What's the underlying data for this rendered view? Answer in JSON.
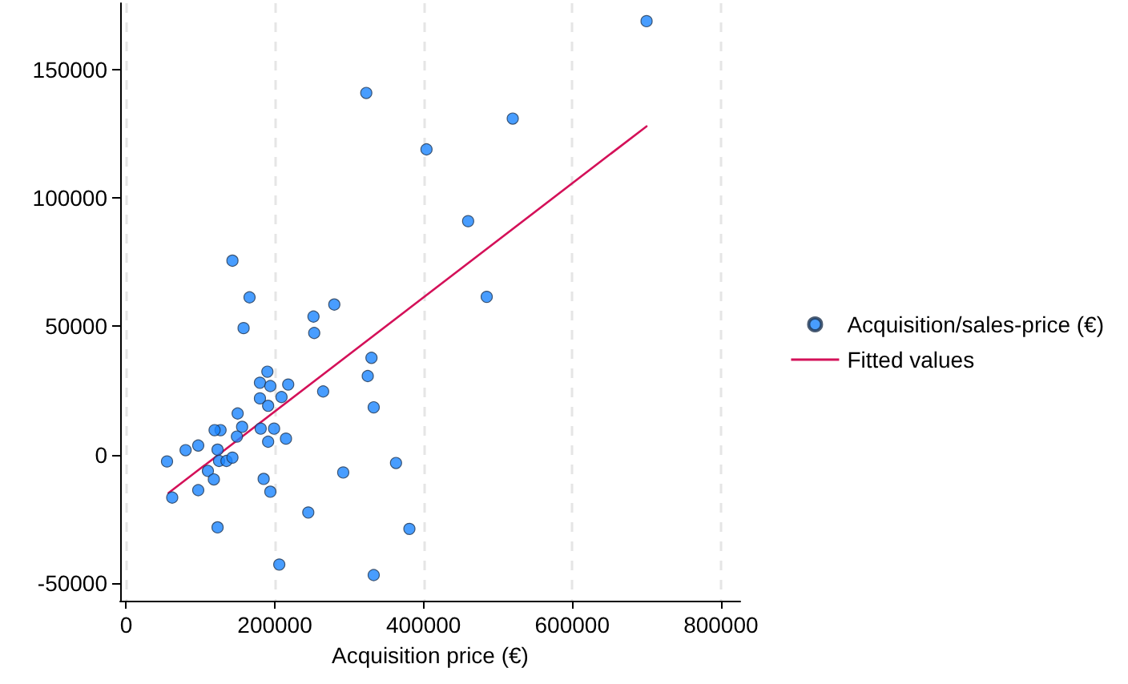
{
  "chart_data": {
    "type": "scatter",
    "xlabel": "Acquisition price (€)",
    "xlim": [
      -8000,
      826000
    ],
    "xticks": [
      0,
      200000,
      400000,
      600000,
      800000
    ],
    "ylim": [
      -57000,
      176000
    ],
    "yticks": [
      -50000,
      0,
      50000,
      100000,
      150000
    ],
    "grid": "x",
    "legend": "right",
    "series": [
      {
        "name": "Acquisition/sales-price (€)",
        "marker": "circle",
        "color": "#1a85ff",
        "x": [
          700000,
          520000,
          460000,
          485000,
          323000,
          404000,
          143000,
          166000,
          280000,
          252000,
          253000,
          158000,
          330000,
          325000,
          333000,
          265000,
          190000,
          180000,
          194000,
          218000,
          180000,
          209000,
          191000,
          150000,
          156000,
          127000,
          119000,
          181000,
          199000,
          149000,
          191000,
          215000,
          97000,
          80000,
          123000,
          55000,
          125000,
          135000,
          143000,
          110000,
          118000,
          97000,
          62000,
          185000,
          194000,
          123000,
          245000,
          292000,
          363000,
          381000,
          206000,
          333000
        ],
        "values": [
          169000,
          131000,
          91000,
          61500,
          141000,
          119000,
          75600,
          61300,
          58500,
          53800,
          47400,
          49300,
          37700,
          30600,
          18400,
          24600,
          32300,
          28000,
          26700,
          27300,
          21900,
          22400,
          19000,
          16000,
          10800,
          9500,
          9500,
          10100,
          10100,
          7000,
          5000,
          6200,
          3500,
          1700,
          1900,
          -2700,
          -2500,
          -2500,
          -1200,
          -6400,
          -9700,
          -13900,
          -16800,
          -9500,
          -14500,
          -28400,
          -22600,
          -7000,
          -3300,
          -29000,
          -42900,
          -47000
        ]
      },
      {
        "name": "Fitted values",
        "type": "line",
        "marker": "none",
        "line_style": "solid",
        "color": "#d41159",
        "x": [
          57000,
          700000
        ],
        "values": [
          -15000,
          128000
        ]
      }
    ]
  }
}
